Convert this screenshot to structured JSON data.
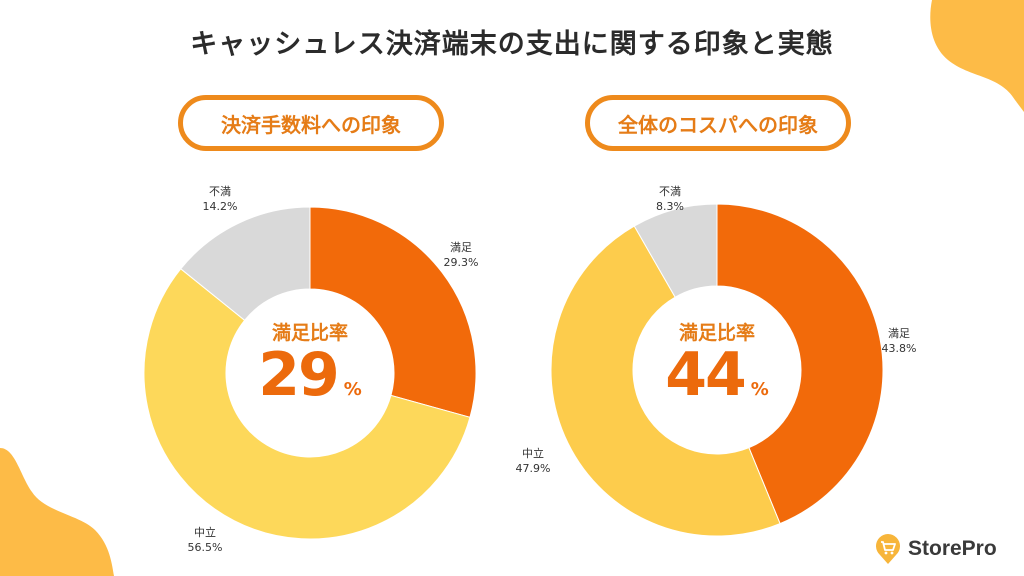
{
  "title": "キャッシュレス決済端末の支出に関する印象と実態",
  "colors": {
    "satisfied": "#f26a0a",
    "neutral_left": "#fdd85a",
    "neutral_right": "#fdcc4c",
    "dissatisfied": "#d9d9d9",
    "accent": "#ee8a1c",
    "blob": "#fdbb47"
  },
  "brand": {
    "name": "StorePro",
    "icon": "shopping-cart-pin-icon"
  },
  "chart_data": [
    {
      "type": "pie",
      "variant": "donut",
      "title": "決済手数料への印象",
      "center_caption": "満足比率",
      "center_value": "29",
      "center_unit": "%",
      "slices": [
        {
          "label": "満足",
          "value": 29.3,
          "display": "29.3%",
          "color": "#f26a0a"
        },
        {
          "label": "中立",
          "value": 56.5,
          "display": "56.5%",
          "color": "#fdd85a"
        },
        {
          "label": "不満",
          "value": 14.2,
          "display": "14.2%",
          "color": "#d9d9d9"
        }
      ]
    },
    {
      "type": "pie",
      "variant": "donut",
      "title": "全体のコスパへの印象",
      "center_caption": "満足比率",
      "center_value": "44",
      "center_unit": "%",
      "slices": [
        {
          "label": "満足",
          "value": 43.8,
          "display": "43.8%",
          "color": "#f26a0a"
        },
        {
          "label": "中立",
          "value": 47.9,
          "display": "47.9%",
          "color": "#fdcc4c"
        },
        {
          "label": "不満",
          "value": 8.3,
          "display": "8.3%",
          "color": "#d9d9d9"
        }
      ]
    }
  ]
}
